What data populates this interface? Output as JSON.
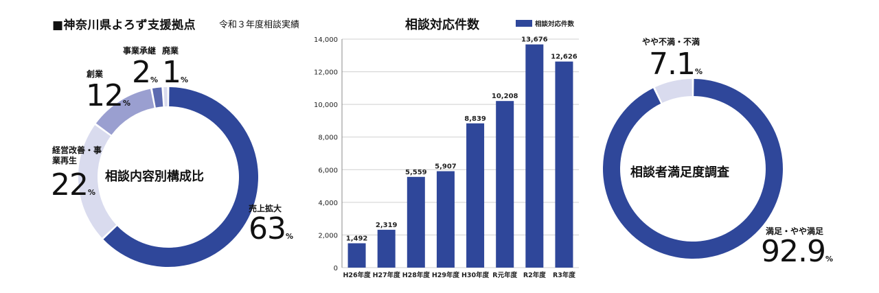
{
  "header": {
    "title": "■神奈川県よろず支援拠点",
    "subtitle": "令和３年度相談実績"
  },
  "colors": {
    "dark": "#2f479a",
    "medium": "#5c6ab0",
    "light_medium": "#9a9fd0",
    "light": "#d9dbee"
  },
  "chart_data": [
    {
      "type": "pie",
      "center_label": "相談内容別構成比",
      "slices": [
        {
          "label": "売上拡大",
          "value": 63,
          "display": "63",
          "unit": "%"
        },
        {
          "label": "経営改善・事業再生",
          "value": 22,
          "display": "22",
          "unit": "%"
        },
        {
          "label": "創業",
          "value": 12,
          "display": "12",
          "unit": "%"
        },
        {
          "label": "事業承継",
          "value": 2,
          "display": "2",
          "unit": "%"
        },
        {
          "label": "廃業",
          "value": 1,
          "display": "1",
          "unit": "%"
        }
      ]
    },
    {
      "type": "bar",
      "title": "相談対応件数",
      "legend": "相談対応件数",
      "categories": [
        "H26年度",
        "H27年度",
        "H28年度",
        "H29年度",
        "H30年度",
        "R元年度",
        "R2年度",
        "R3年度"
      ],
      "values": [
        1492,
        2319,
        5559,
        5907,
        8839,
        10208,
        13676,
        12626
      ],
      "value_labels": [
        "1,492",
        "2,319",
        "5,559",
        "5,907",
        "8,839",
        "10,208",
        "13,676",
        "12,626"
      ],
      "ylim": [
        0,
        14000
      ],
      "yticks": [
        "0",
        "2,000",
        "4,000",
        "6,000",
        "8,000",
        "10,000",
        "12,000",
        "14,000"
      ]
    },
    {
      "type": "pie",
      "center_label": "相談者満足度調査",
      "slices": [
        {
          "label": "満足・やや満足",
          "value": 92.9,
          "display": "92.9",
          "unit": "%"
        },
        {
          "label": "やや不満・不満",
          "value": 7.1,
          "display": "7.1",
          "unit": "%"
        }
      ]
    }
  ]
}
